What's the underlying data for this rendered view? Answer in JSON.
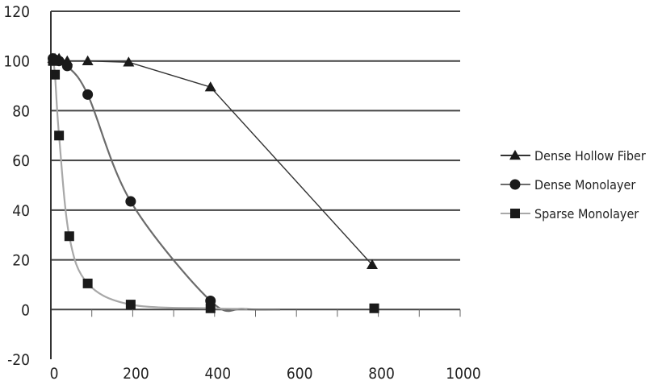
{
  "chart_data": {
    "type": "scatter",
    "title": "",
    "xlabel": "",
    "ylabel": "",
    "xlim": [
      0,
      1000
    ],
    "ylim": [
      -20,
      120
    ],
    "x_ticks": [
      0,
      200,
      400,
      600,
      800,
      1000
    ],
    "y_ticks": [
      -20,
      0,
      20,
      40,
      60,
      80,
      100,
      120
    ],
    "grid": "horizontal",
    "legend_position": "right",
    "series": [
      {
        "name": "Dense Hollow Fiber",
        "marker": "triangle",
        "line_color": "#333333",
        "points": [
          [
            5,
            101
          ],
          [
            10,
            101
          ],
          [
            20,
            101
          ],
          [
            40,
            100
          ],
          [
            90,
            100
          ],
          [
            190,
            99.5
          ],
          [
            390,
            89.5
          ],
          [
            785,
            18
          ]
        ]
      },
      {
        "name": "Dense Monolayer",
        "marker": "circle",
        "line_color": "#6b6b6b",
        "points": [
          [
            5,
            101
          ],
          [
            10,
            100.5
          ],
          [
            20,
            100
          ],
          [
            40,
            98
          ],
          [
            90,
            86.5
          ],
          [
            195,
            43.5
          ],
          [
            390,
            3.5
          ]
        ]
      },
      {
        "name": "Sparse Monolayer",
        "marker": "square",
        "line_color": "#a8a8a8",
        "points": [
          [
            5,
            100
          ],
          [
            10,
            94.5
          ],
          [
            20,
            70
          ],
          [
            45,
            29.5
          ],
          [
            90,
            10.5
          ],
          [
            195,
            2
          ],
          [
            390,
            0.5
          ],
          [
            790,
            0.5
          ]
        ]
      }
    ]
  }
}
